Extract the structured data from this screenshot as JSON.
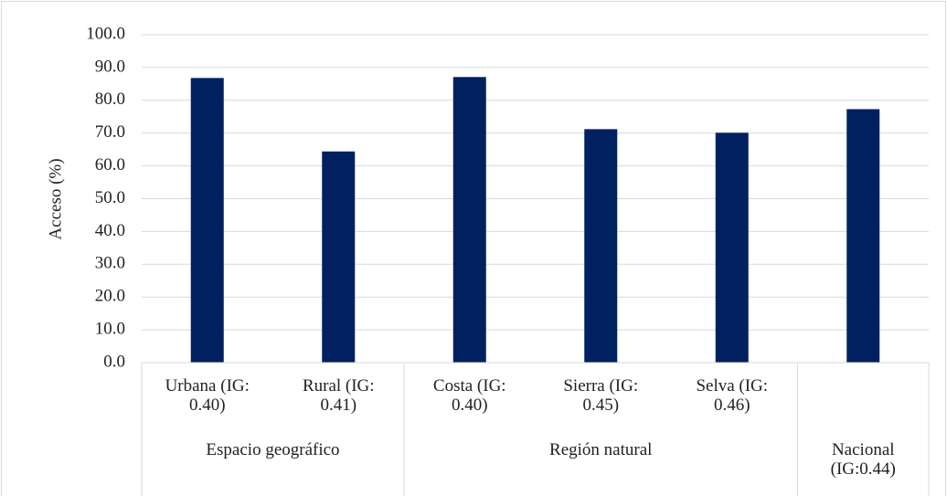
{
  "chart_data": {
    "type": "bar",
    "y_label": "Acceso (%)",
    "categories": [
      "Urbana (IG: 0.40)",
      "Rural (IG: 0.41)",
      "Costa (IG: 0.40)",
      "Sierra (IG: 0.45)",
      "Selva (IG: 0.46)",
      null
    ],
    "values": [
      86.8,
      64.4,
      87.1,
      71.2,
      70.1,
      77.3
    ],
    "groups": [
      {
        "label": "Espacio geográfico",
        "count": 2
      },
      {
        "label": "Región natural",
        "count": 3
      },
      {
        "label": "Nacional (IG:0.44)",
        "count": 1
      }
    ],
    "color": "#002060",
    "ylim": [
      0,
      100
    ],
    "yticks": [
      {
        "value": 0,
        "label": "0.0"
      },
      {
        "value": 10,
        "label": "10.0"
      },
      {
        "value": 20,
        "label": "20.0"
      },
      {
        "value": 30,
        "label": "30.0"
      },
      {
        "value": 40,
        "label": "40.0"
      },
      {
        "value": 50,
        "label": "50.0"
      },
      {
        "value": 60,
        "label": "60.0"
      },
      {
        "value": 70,
        "label": "70.0"
      },
      {
        "value": 80,
        "label": "80.0"
      },
      {
        "value": 90,
        "label": "90.0"
      },
      {
        "value": 100,
        "label": "100.0"
      }
    ],
    "grid": true
  }
}
